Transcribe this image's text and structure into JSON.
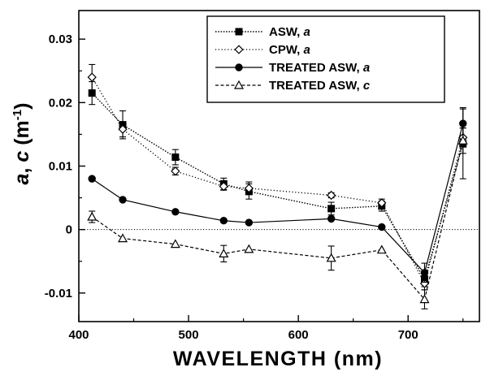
{
  "chart_data": {
    "type": "line",
    "xlabel": "WAVELENGTH  (nm)",
    "ylabel_parts": {
      "a": "a",
      "sep": ", ",
      "c": "c",
      "unit": "  (m",
      "exp": "-1",
      "close": ")"
    },
    "xlim": [
      400,
      765
    ],
    "ylim": [
      -0.0145,
      0.0345
    ],
    "x_ticks": [
      400,
      500,
      600,
      700
    ],
    "x_tick_labels": [
      "400",
      "500",
      "600",
      "700"
    ],
    "y_ticks": [
      -0.01,
      0,
      0.01,
      0.02,
      0.03
    ],
    "y_tick_labels": [
      "-0.01",
      "0",
      "0.01",
      "0.02",
      "0.03"
    ],
    "reference_line_y": 0,
    "legend": {
      "position": "top-right"
    },
    "series": [
      {
        "name": "ASW, ",
        "name_italic": "a",
        "marker": "square-filled",
        "line": "dotted-dense",
        "x": [
          412,
          440,
          488,
          532,
          555,
          630,
          676,
          715,
          750
        ],
        "y": [
          0.0215,
          0.0165,
          0.0114,
          0.0072,
          0.006,
          0.0033,
          0.0037,
          -0.0078,
          0.0135
        ],
        "err": [
          0.0018,
          0.0022,
          0.0012,
          0.0009,
          0.0012,
          0.001,
          0.0008,
          0.0012,
          0.0055
        ]
      },
      {
        "name": "CPW, ",
        "name_italic": "a",
        "marker": "diamond-open",
        "line": "dotted-sparse",
        "x": [
          412,
          440,
          488,
          532,
          555,
          630,
          676,
          715,
          750
        ],
        "y": [
          0.024,
          0.0158,
          0.0092,
          0.0068,
          0.0065,
          0.0054,
          0.0042,
          -0.0085,
          0.0145
        ],
        "err": [
          0.002,
          0.0012,
          0.0006,
          0.0006,
          0.001,
          0.0004,
          0.0006,
          0.001,
          0.0015
        ]
      },
      {
        "name": "TREATED ASW, ",
        "name_italic": "a",
        "marker": "circle-filled",
        "line": "solid",
        "x": [
          412,
          440,
          488,
          532,
          555,
          630,
          676,
          715,
          750
        ],
        "y": [
          0.008,
          0.0047,
          0.0028,
          0.0014,
          0.0011,
          0.0017,
          0.0004,
          -0.0068,
          0.0167
        ],
        "err": [
          0,
          0,
          0,
          0,
          0,
          0,
          0,
          0.0015,
          0.0025
        ]
      },
      {
        "name": "TREATED ASW, ",
        "name_italic": "c",
        "marker": "triangle-open",
        "line": "dashed",
        "x": [
          412,
          440,
          488,
          532,
          555,
          630,
          676,
          715,
          750
        ],
        "y": [
          0.002,
          -0.0014,
          -0.0023,
          -0.0038,
          -0.0031,
          -0.0045,
          -0.0032,
          -0.011,
          0.014
        ],
        "err": [
          0.0009,
          0,
          0,
          0.0013,
          0,
          0.0019,
          0,
          0.0015,
          0.002
        ]
      }
    ]
  }
}
